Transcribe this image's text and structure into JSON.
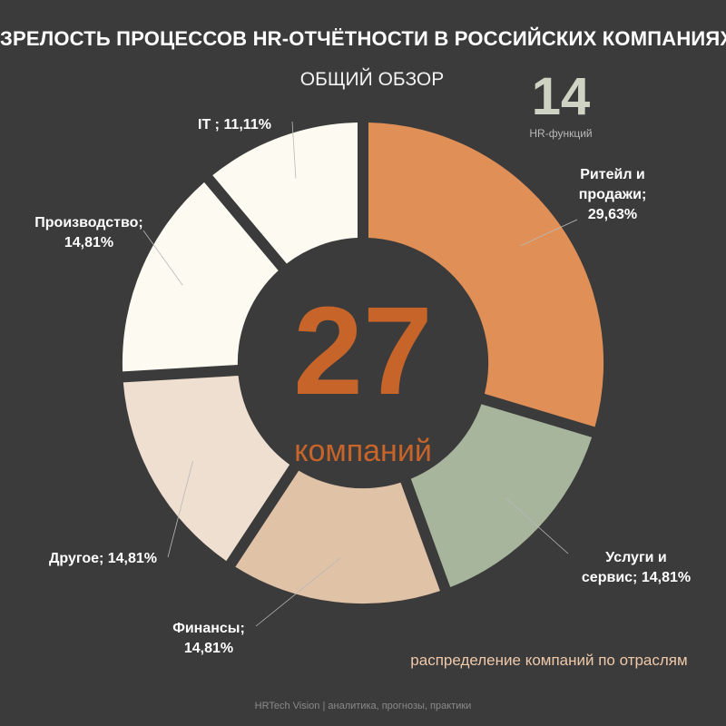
{
  "header": {
    "title": "ЗРЕЛОСТЬ ПРОЦЕССОВ HR-ОТЧЁТНОСТИ В РОССИЙСКИХ КОМПАНИЯХ",
    "subtitle": "ОБЩИЙ ОБЗОР"
  },
  "stat": {
    "number": "14",
    "label": "HR-функций"
  },
  "center": {
    "number": "27",
    "label": "компаний"
  },
  "caption": "распределение компаний по отраслям",
  "footer": "HRTech Vision | аналитика, прогнозы, практики",
  "colors": {
    "background": "#3b3b3b",
    "accent": "#c7642a",
    "retail": "#e08f57",
    "services": "#a7b59d",
    "finance": "#e0c2a6",
    "other": "#efdfd1",
    "production": "#fdfaf1",
    "it": "#fdfaf1"
  },
  "chart_data": {
    "type": "pie",
    "title": "",
    "slices": [
      {
        "label": "Ритейл и продажи",
        "text": "Ритейл и продажи; 29,63%",
        "line1": "Ритейл и",
        "line2": "продажи;",
        "line3": "29,63%",
        "value": 29.63,
        "color": "#e08f57",
        "label_style": "middle"
      },
      {
        "label": "Услуги и сервис",
        "text": "Услуги и сервис; 14,81%",
        "line1": "Услуги и",
        "line2": "сервис; 14,81%",
        "line3": "",
        "value": 14.81,
        "color": "#a7b59d",
        "label_style": "middle"
      },
      {
        "label": "Финансы",
        "text": "Финансы; 14,81%",
        "line1": "Финансы;",
        "line2": "14,81%",
        "line3": "",
        "value": 14.81,
        "color": "#e0c2a6",
        "label_style": "middle"
      },
      {
        "label": "Другое",
        "text": "Другое; 14,81%",
        "line1": "Другое; 14,81%",
        "line2": "",
        "line3": "",
        "value": 14.81,
        "color": "#efdfd1",
        "label_style": "end"
      },
      {
        "label": "Производство",
        "text": "Производство; 14,81%",
        "line1": "Производство;",
        "line2": "14,81%",
        "line3": "",
        "value": 14.81,
        "color": "#fdfaf1",
        "label_style": "middle"
      },
      {
        "label": "IT",
        "text": "IT ; 11,11%",
        "line1": "IT ; 11,11%",
        "line2": "",
        "line3": "",
        "value": 11.11,
        "color": "#fdfaf1",
        "label_style": "bottom"
      }
    ]
  }
}
